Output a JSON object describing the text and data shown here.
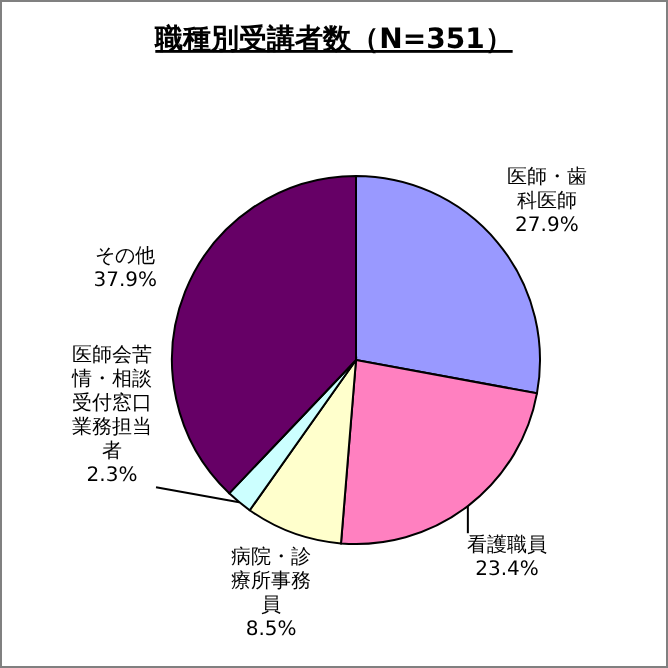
{
  "chart_data": {
    "type": "pie",
    "title": "職種別受講者数（N=351）",
    "categories": [
      "医師・歯科医師",
      "看護職員",
      "病院・診療所事務員",
      "医師会苦情・相談受付窓口業務担当者",
      "その他"
    ],
    "values": [
      27.9,
      23.4,
      8.5,
      2.3,
      37.9
    ],
    "colors": [
      "#9999ff",
      "#ff80c0",
      "#ffffcc",
      "#ccffff",
      "#660066"
    ],
    "value_labels": [
      "27.9%",
      "23.4%",
      "8.5%",
      "2.3%",
      "37.9%"
    ]
  }
}
